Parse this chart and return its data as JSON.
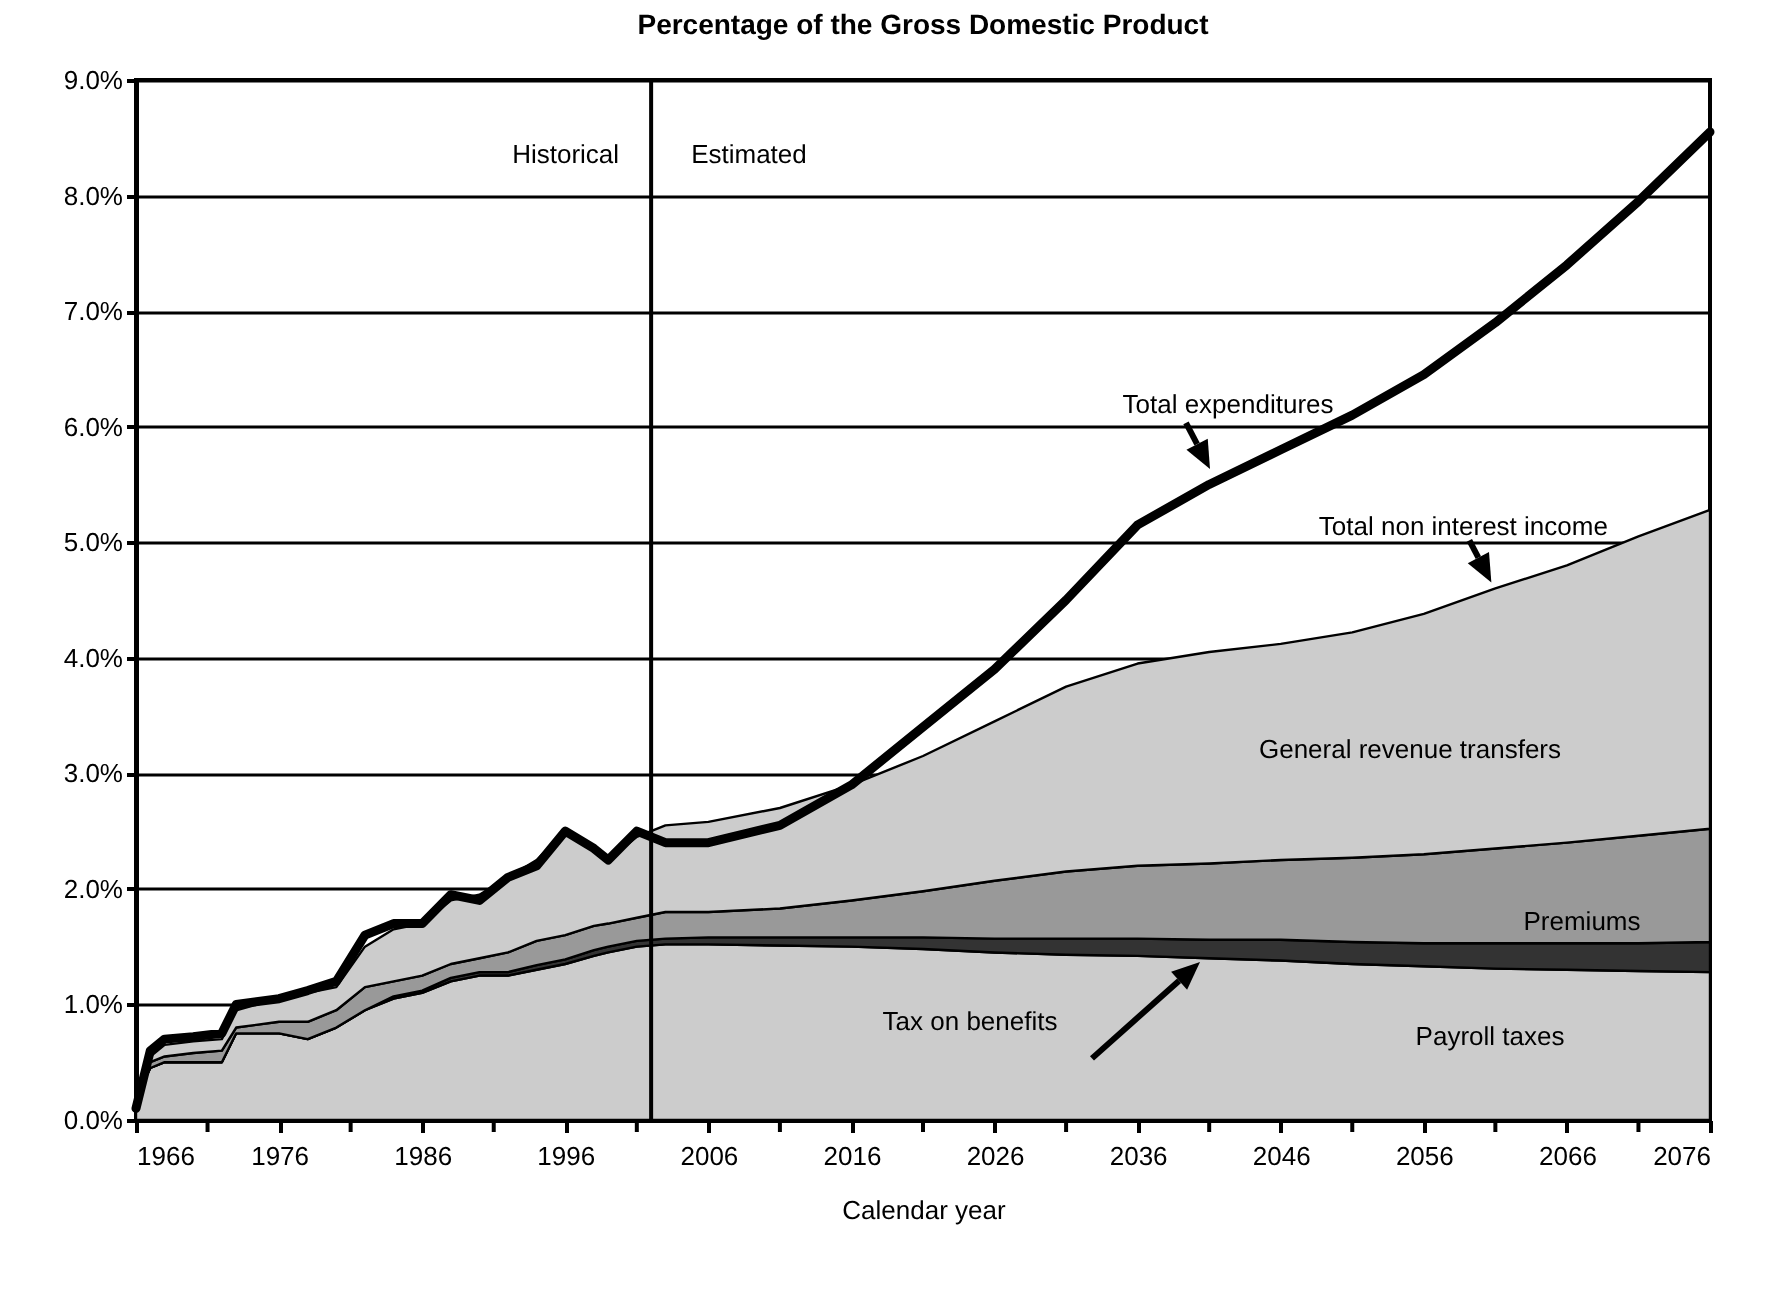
{
  "chart_data": {
    "type": "area",
    "title": "Percentage of the Gross Domestic Product",
    "xlabel": "Calendar year",
    "stacked": true,
    "grid": "y",
    "x": [
      1966,
      1967,
      1968,
      1970,
      1972,
      1973,
      1976,
      1978,
      1980,
      1982,
      1984,
      1986,
      1988,
      1990,
      1992,
      1994,
      1996,
      1998,
      1999,
      2001,
      2003,
      2006,
      2011,
      2016,
      2021,
      2026,
      2031,
      2036,
      2041,
      2046,
      2051,
      2056,
      2061,
      2066,
      2071,
      2076
    ],
    "xlim": [
      1966,
      2076
    ],
    "xticks": [
      1966,
      {
        "value": 1971,
        "label": null
      },
      1976,
      {
        "value": 1981,
        "label": null
      },
      1986,
      {
        "value": 1991,
        "label": null
      },
      1996,
      {
        "value": 2001,
        "label": null
      },
      2006,
      {
        "value": 2011,
        "label": null
      },
      2016,
      {
        "value": 2021,
        "label": null
      },
      2026,
      {
        "value": 2031,
        "label": null
      },
      2036,
      {
        "value": 2041,
        "label": null
      },
      2046,
      {
        "value": 2051,
        "label": null
      },
      2056,
      {
        "value": 2061,
        "label": null
      },
      2066,
      {
        "value": 2071,
        "label": null
      },
      2076
    ],
    "ylim": [
      0,
      9
    ],
    "yticks": [
      {
        "value": 0,
        "label": "0.0%"
      },
      {
        "value": 1,
        "label": "1.0%"
      },
      {
        "value": 2,
        "label": "2.0%"
      },
      {
        "value": 3,
        "label": "3.0%"
      },
      {
        "value": 4,
        "label": "4.0%"
      },
      {
        "value": 5,
        "label": "5.0%"
      },
      {
        "value": 6,
        "label": "6.0%"
      },
      {
        "value": 7,
        "label": "7.0%"
      },
      {
        "value": 8,
        "label": "8.0%"
      },
      {
        "value": 9,
        "label": "9.0%"
      }
    ],
    "ref_lines": [
      {
        "axis": "x",
        "value": 2002
      }
    ],
    "annotations": [
      "Historical",
      "Estimated",
      {
        "text": "Total non interest income",
        "x": 2061,
        "y": 4.6
      }
    ],
    "series": [
      {
        "name": "Payroll taxes",
        "color": "#cccccc",
        "values": [
          0.2,
          0.45,
          0.5,
          0.5,
          0.5,
          0.75,
          0.75,
          0.7,
          0.8,
          0.95,
          1.05,
          1.1,
          1.2,
          1.25,
          1.25,
          1.3,
          1.35,
          1.42,
          1.45,
          1.5,
          1.52,
          1.52,
          1.51,
          1.5,
          1.48,
          1.45,
          1.43,
          1.42,
          1.4,
          1.38,
          1.35,
          1.33,
          1.31,
          1.3,
          1.29,
          1.28
        ]
      },
      {
        "name": "Tax on benefits",
        "color": "#333333",
        "values": [
          0,
          0,
          0,
          0,
          0,
          0,
          0,
          0,
          0,
          0,
          0.02,
          0.02,
          0.03,
          0.03,
          0.03,
          0.04,
          0.04,
          0.05,
          0.05,
          0.05,
          0.05,
          0.06,
          0.07,
          0.08,
          0.1,
          0.12,
          0.14,
          0.15,
          0.16,
          0.18,
          0.19,
          0.2,
          0.22,
          0.23,
          0.24,
          0.26
        ]
      },
      {
        "name": "Premiums",
        "color": "#999999",
        "values": [
          0,
          0.05,
          0.05,
          0.08,
          0.1,
          0.05,
          0.1,
          0.15,
          0.15,
          0.2,
          0.13,
          0.13,
          0.12,
          0.12,
          0.17,
          0.21,
          0.21,
          0.21,
          0.2,
          0.2,
          0.23,
          0.22,
          0.25,
          0.32,
          0.4,
          0.5,
          0.58,
          0.63,
          0.66,
          0.69,
          0.73,
          0.77,
          0.82,
          0.87,
          0.93,
          0.98
        ]
      },
      {
        "name": "General revenue transfers",
        "color": "#cccccc",
        "values": [
          0,
          0.05,
          0.1,
          0.1,
          0.1,
          0.15,
          0.2,
          0.25,
          0.2,
          0.35,
          0.45,
          0.45,
          0.55,
          0.55,
          0.65,
          0.7,
          0.9,
          0.67,
          0.55,
          0.7,
          0.75,
          0.78,
          0.87,
          1.0,
          1.17,
          1.38,
          1.6,
          1.75,
          1.83,
          1.87,
          1.95,
          2.08,
          2.25,
          2.4,
          2.59,
          2.76
        ]
      },
      {
        "name": "Total expenditures",
        "type": "line",
        "color": "#000000",
        "values": [
          0.1,
          0.6,
          0.7,
          0.72,
          0.75,
          1.0,
          1.05,
          1.12,
          1.2,
          1.6,
          1.7,
          1.7,
          1.95,
          1.9,
          2.1,
          2.2,
          2.5,
          2.35,
          2.25,
          2.5,
          2.4,
          2.4,
          2.55,
          2.9,
          3.4,
          3.9,
          4.5,
          5.15,
          5.5,
          5.8,
          6.1,
          6.45,
          6.9,
          7.4,
          7.95,
          8.55
        ]
      }
    ]
  }
}
